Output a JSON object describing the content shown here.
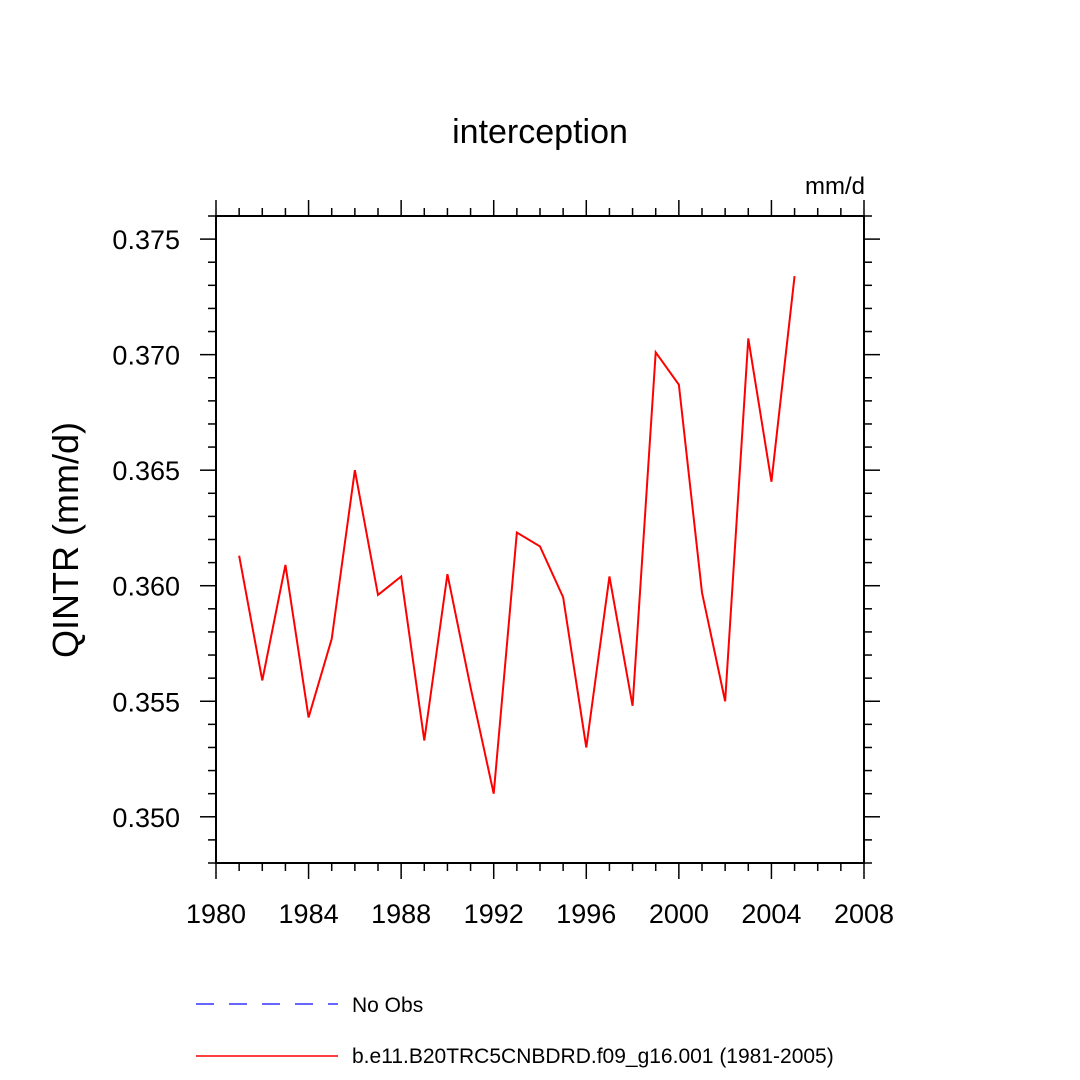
{
  "chart_data": {
    "type": "line",
    "title": "interception",
    "units": "mm/d",
    "ylabel": "QINTR  (mm/d)",
    "xlabel": "",
    "xlim": [
      1980,
      2008
    ],
    "ylim": [
      0.348,
      0.376
    ],
    "x_ticks": [
      1980,
      1984,
      1988,
      1992,
      1996,
      2000,
      2004,
      2008
    ],
    "x_tick_labels": [
      "1980",
      "1984",
      "1988",
      "1992",
      "1996",
      "2000",
      "2004",
      "2008"
    ],
    "y_ticks": [
      0.35,
      0.355,
      0.36,
      0.365,
      0.37,
      0.375
    ],
    "y_tick_labels": [
      "0.350",
      "0.355",
      "0.360",
      "0.365",
      "0.370",
      "0.375"
    ],
    "x_minor_step": 1,
    "y_minor_step": 0.001,
    "series": [
      {
        "name": "b.e11.B20TRC5CNBDRD.f09_g16.001 (1981-2005)",
        "color": "#ff0000",
        "dash": "solid",
        "x": [
          1981,
          1982,
          1983,
          1984,
          1985,
          1986,
          1987,
          1988,
          1989,
          1990,
          1991,
          1992,
          1993,
          1994,
          1995,
          1996,
          1997,
          1998,
          1999,
          2000,
          2001,
          2002,
          2003,
          2004,
          2005
        ],
        "values": [
          0.3613,
          0.3559,
          0.3609,
          0.3543,
          0.3577,
          0.365,
          0.3596,
          0.3604,
          0.3533,
          0.3605,
          0.3556,
          0.351,
          0.3623,
          0.3617,
          0.3595,
          0.353,
          0.3604,
          0.3548,
          0.3701,
          0.3687,
          0.3597,
          0.355,
          0.3707,
          0.3645,
          0.3734
        ]
      }
    ],
    "legend": [
      {
        "label": "No Obs",
        "color": "#3333ff",
        "dash": "dashed"
      },
      {
        "label": "b.e11.B20TRC5CNBDRD.f09_g16.001 (1981-2005)",
        "color": "#ff0000",
        "dash": "solid"
      }
    ]
  }
}
